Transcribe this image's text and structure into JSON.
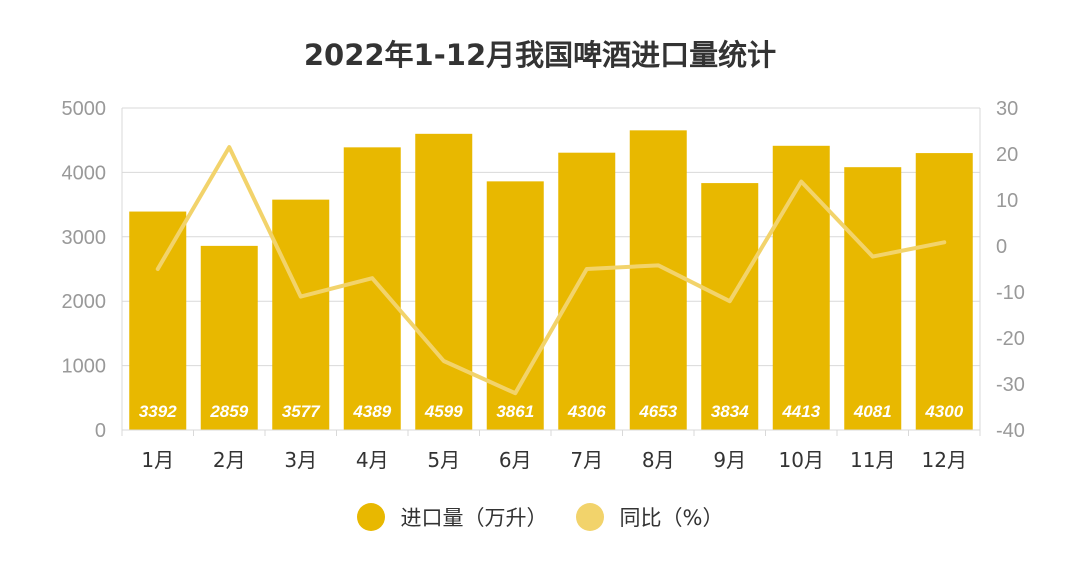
{
  "chart_data": {
    "type": "bar",
    "title": "2022年1-12月我国啤酒进口量统计",
    "categories": [
      "1月",
      "2月",
      "3月",
      "4月",
      "5月",
      "6月",
      "7月",
      "8月",
      "9月",
      "10月",
      "11月",
      "12月"
    ],
    "series": [
      {
        "name": "进口量（万升）",
        "type": "bar",
        "axis": "left",
        "color": "#E8B800",
        "values": [
          3392,
          2859,
          3577,
          4389,
          4599,
          3861,
          4306,
          4653,
          3834,
          4413,
          4081,
          4300
        ]
      },
      {
        "name": "同比（%）",
        "type": "line",
        "axis": "right",
        "color": "#F2D36B",
        "values": [
          -5,
          21.5,
          -11,
          -7,
          -25,
          -32,
          -5,
          -4.2,
          -12,
          14,
          -2.3,
          0.8
        ]
      }
    ],
    "y_left": {
      "min": 0,
      "max": 5000,
      "ticks": [
        0,
        1000,
        2000,
        3000,
        4000,
        5000
      ]
    },
    "y_right": {
      "min": -40,
      "max": 30,
      "ticks": [
        -40,
        -30,
        -20,
        -10,
        0,
        10,
        20,
        30
      ]
    },
    "grid": true,
    "data_labels": true,
    "legend_position": "bottom"
  }
}
